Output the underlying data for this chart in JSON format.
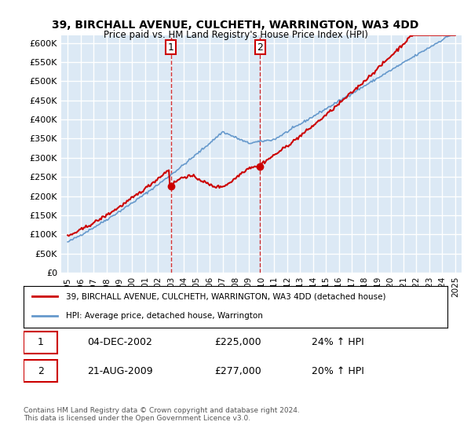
{
  "title": "39, BIRCHALL AVENUE, CULCHETH, WARRINGTON, WA3 4DD",
  "subtitle": "Price paid vs. HM Land Registry's House Price Index (HPI)",
  "ylabel": "",
  "ylim": [
    0,
    620000
  ],
  "yticks": [
    0,
    50000,
    100000,
    150000,
    200000,
    250000,
    300000,
    350000,
    400000,
    450000,
    500000,
    550000,
    600000
  ],
  "ytick_labels": [
    "£0",
    "£50K",
    "£100K",
    "£150K",
    "£200K",
    "£250K",
    "£300K",
    "£350K",
    "£400K",
    "£450K",
    "£500K",
    "£550K",
    "£600K"
  ],
  "sale1_date_idx": 8.0,
  "sale1_price": 225000,
  "sale1_label": "1",
  "sale1_date_str": "04-DEC-2002",
  "sale1_pct": "24%",
  "sale2_date_idx": 14.9,
  "sale2_price": 277000,
  "sale2_label": "2",
  "sale2_date_str": "21-AUG-2009",
  "sale2_pct": "20%",
  "legend_entry1": "39, BIRCHALL AVENUE, CULCHETH, WARRINGTON, WA3 4DD (detached house)",
  "legend_entry2": "HPI: Average price, detached house, Warrington",
  "table_row1": [
    "1",
    "04-DEC-2002",
    "£225,000",
    "24% ↑ HPI"
  ],
  "table_row2": [
    "2",
    "21-AUG-2009",
    "£277,000",
    "20% ↑ HPI"
  ],
  "footnote": "Contains HM Land Registry data © Crown copyright and database right 2024.\nThis data is licensed under the Open Government Licence v3.0.",
  "background_color": "#ffffff",
  "plot_bg_color": "#dce9f5",
  "grid_color": "#ffffff",
  "red_line_color": "#cc0000",
  "blue_line_color": "#6699cc",
  "vline_color": "#cc0000",
  "x_start_year": 1995,
  "x_end_year": 2025
}
